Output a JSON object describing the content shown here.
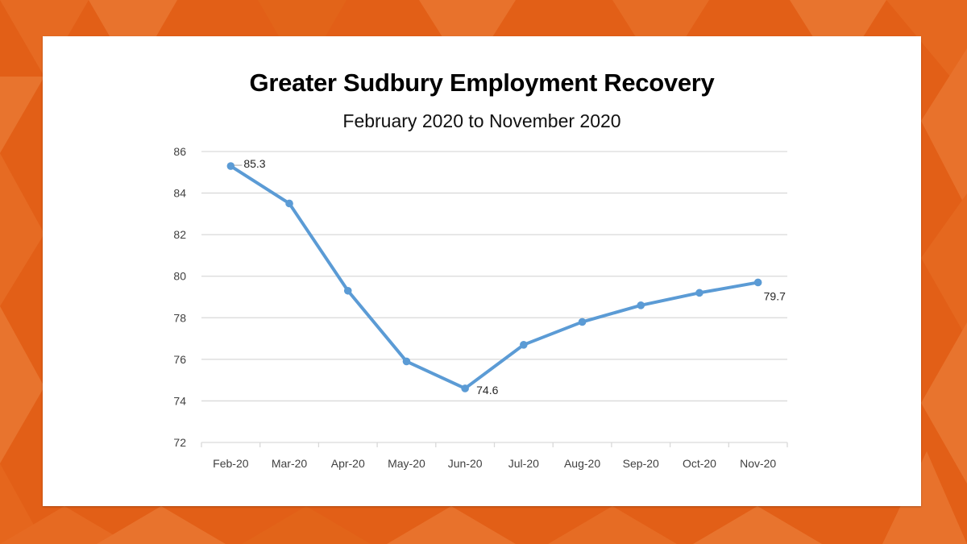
{
  "header": {
    "title": "Greater Sudbury Employment Recovery",
    "subtitle": "February 2020 to November 2020"
  },
  "colors": {
    "background_orange": "#e25f17",
    "background_orange_light": "#e8722c",
    "panel": "#ffffff",
    "line": "#5b9bd5",
    "gridline": "#d9d9d9",
    "axis_text": "#404040"
  },
  "chart_data": {
    "type": "line",
    "title": "Greater Sudbury Employment Recovery",
    "subtitle": "February 2020 to November 2020",
    "xlabel": "",
    "ylabel": "",
    "categories": [
      "Feb-20",
      "Mar-20",
      "Apr-20",
      "May-20",
      "Jun-20",
      "Jul-20",
      "Aug-20",
      "Sep-20",
      "Oct-20",
      "Nov-20"
    ],
    "series": [
      {
        "name": "Employment",
        "values": [
          85.3,
          83.5,
          79.3,
          75.9,
          74.6,
          76.7,
          77.8,
          78.6,
          79.2,
          79.7
        ]
      }
    ],
    "data_labels": [
      {
        "index": 0,
        "text": "85.3"
      },
      {
        "index": 4,
        "text": "74.6"
      },
      {
        "index": 9,
        "text": "79.7"
      }
    ],
    "yticks": [
      "72",
      "74",
      "76",
      "78",
      "80",
      "82",
      "84",
      "86"
    ],
    "ylim": [
      72,
      86
    ],
    "grid": true,
    "legend": "none"
  }
}
